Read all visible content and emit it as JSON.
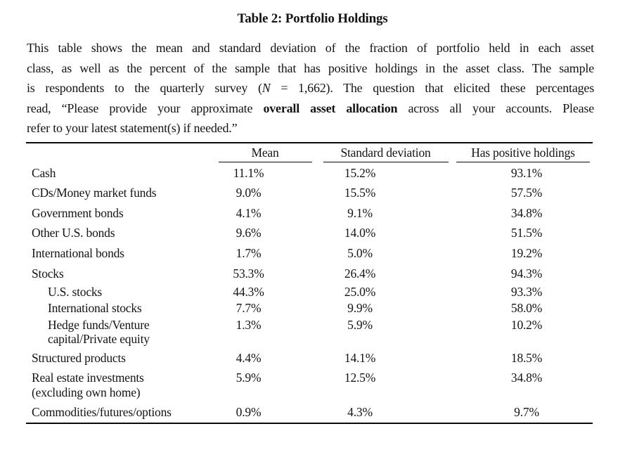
{
  "page": {
    "title": "Table 2: Portfolio Holdings"
  },
  "description": {
    "lines": [
      {
        "runs": [
          {
            "text": "This table shows the mean and standard deviation of the fraction of portfolio held in each asset"
          }
        ]
      },
      {
        "runs": [
          {
            "text": "class, as well as the percent of the sample that has positive holdings in the asset class. The sample"
          }
        ]
      },
      {
        "runs": [
          {
            "text": "is respondents to the quarterly survey ("
          },
          {
            "text": "N",
            "italic": true
          },
          {
            "text": " = 1,662). The question that elicited these percentages"
          }
        ]
      },
      {
        "runs": [
          {
            "text": "read, “Please provide your approximate "
          },
          {
            "text": "overall asset allocation",
            "bold": true
          },
          {
            "text": " across all your accounts. Please"
          }
        ]
      },
      {
        "runs": [
          {
            "text": "refer to your latest statement(s) if needed.”"
          }
        ],
        "last": true
      }
    ]
  },
  "chart_data": {
    "type": "table",
    "title": "Table 2: Portfolio Holdings",
    "columns": [
      "",
      "Mean",
      "Standard deviation",
      "Has positive holdings"
    ],
    "rows": [
      {
        "label": [
          "Cash"
        ],
        "sub": false,
        "indent": false,
        "values": [
          "11.1%",
          "15.2%",
          "93.1%"
        ]
      },
      {
        "label": [
          "CDs/Money market funds"
        ],
        "sub": false,
        "indent": false,
        "values": [
          "9.0%",
          "15.5%",
          "57.5%"
        ]
      },
      {
        "label": [
          "Government bonds"
        ],
        "sub": false,
        "indent": false,
        "values": [
          "4.1%",
          "9.1%",
          "34.8%"
        ]
      },
      {
        "label": [
          "Other U.S. bonds"
        ],
        "sub": false,
        "indent": false,
        "values": [
          "9.6%",
          "14.0%",
          "51.5%"
        ]
      },
      {
        "label": [
          "International bonds"
        ],
        "sub": false,
        "indent": false,
        "values": [
          "1.7%",
          "5.0%",
          "19.2%"
        ]
      },
      {
        "label": [
          "Stocks"
        ],
        "sub": false,
        "indent": false,
        "values": [
          "53.3%",
          "26.4%",
          "94.3%"
        ]
      },
      {
        "label": [
          "U.S. stocks"
        ],
        "sub": true,
        "indent": true,
        "values": [
          "44.3%",
          "25.0%",
          "93.3%"
        ]
      },
      {
        "label": [
          "International stocks"
        ],
        "sub": true,
        "indent": true,
        "values": [
          "7.7%",
          "9.9%",
          "58.0%"
        ]
      },
      {
        "label": [
          "Hedge funds/Venture",
          "capital/Private equity"
        ],
        "sub": true,
        "indent": true,
        "values": [
          "1.3%",
          "5.9%",
          "10.2%"
        ]
      },
      {
        "label": [
          "Structured products"
        ],
        "sub": false,
        "indent": false,
        "values": [
          "4.4%",
          "14.1%",
          "18.5%"
        ]
      },
      {
        "label": [
          "Real estate investments",
          "(excluding own home)"
        ],
        "sub": false,
        "indent": false,
        "values": [
          "5.9%",
          "12.5%",
          "34.8%"
        ]
      },
      {
        "label": [
          "Commodities/futures/options"
        ],
        "sub": false,
        "indent": false,
        "values": [
          "0.9%",
          "4.3%",
          "9.7%"
        ]
      }
    ]
  },
  "colors": {
    "text": "#161412",
    "rule": "#0b0b0b",
    "background": "#ffffff"
  }
}
